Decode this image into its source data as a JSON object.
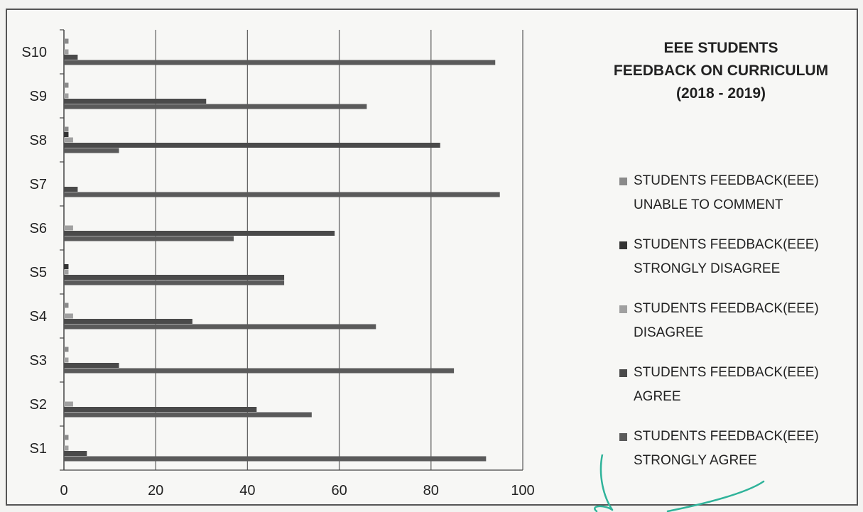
{
  "chart_data": {
    "type": "bar",
    "orientation": "horizontal",
    "title_lines": [
      "EEE STUDENTS",
      "FEEDBACK ON CURRICULUM",
      "(2018 - 2019)"
    ],
    "categories": [
      "S1",
      "S2",
      "S3",
      "S4",
      "S5",
      "S6",
      "S7",
      "S8",
      "S9",
      "S10"
    ],
    "xlim": [
      0,
      100
    ],
    "xticks": [
      0,
      20,
      40,
      60,
      80,
      100
    ],
    "grid": "vertical",
    "legend_position": "right",
    "series": [
      {
        "name": "STUDENTS FEEDBACK(EEE) STRONGLY AGREE",
        "color": "#5a5a5a",
        "values": [
          92,
          54,
          85,
          68,
          48,
          37,
          95,
          12,
          66,
          94
        ]
      },
      {
        "name": "STUDENTS FEEDBACK(EEE) AGREE",
        "color": "#4a4a4a",
        "values": [
          5,
          42,
          12,
          28,
          48,
          59,
          3,
          82,
          31,
          3
        ]
      },
      {
        "name": "STUDENTS FEEDBACK(EEE) DISAGREE",
        "color": "#a0a0a0",
        "values": [
          1,
          2,
          1,
          2,
          1,
          2,
          0,
          2,
          1,
          1
        ]
      },
      {
        "name": "STUDENTS FEEDBACK(EEE) STRONGLY DISAGREE",
        "color": "#333333",
        "values": [
          0,
          0,
          0,
          0,
          1,
          0,
          0,
          1,
          0,
          0
        ]
      },
      {
        "name": "STUDENTS FEEDBACK(EEE) UNABLE TO COMMENT",
        "color": "#8a8a8a",
        "values": [
          1,
          0,
          1,
          1,
          0,
          0,
          0,
          1,
          1,
          1
        ]
      }
    ],
    "legend": [
      {
        "label": "STUDENTS FEEDBACK(EEE)\nUNABLE TO COMMENT",
        "color": "#8a8a8a"
      },
      {
        "label": "STUDENTS FEEDBACK(EEE)\nSTRONGLY DISAGREE",
        "color": "#333333"
      },
      {
        "label": "STUDENTS FEEDBACK(EEE)\nDISAGREE",
        "color": "#a0a0a0"
      },
      {
        "label": "STUDENTS FEEDBACK(EEE)\nAGREE",
        "color": "#4a4a4a"
      },
      {
        "label": "STUDENTS FEEDBACK(EEE)\nSTRONGLY AGREE",
        "color": "#5a5a5a"
      }
    ]
  }
}
